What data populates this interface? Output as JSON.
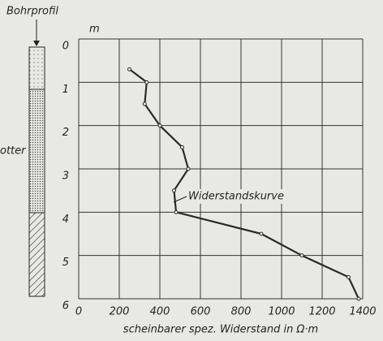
{
  "profile": {
    "title": "Bohrprofil",
    "label": "otter"
  },
  "chart_data": {
    "type": "line",
    "y_unit": "m",
    "xlabel": "scheinbarer spez. Widerstand in Ω·m",
    "annotation": "Widerstandskurve",
    "x": [
      250,
      335,
      325,
      400,
      510,
      540,
      470,
      480,
      900,
      1100,
      1330,
      1380
    ],
    "values": [
      0.7,
      1.0,
      1.5,
      2.0,
      2.5,
      3.0,
      3.5,
      4.0,
      4.5,
      5.0,
      5.5,
      6.0
    ],
    "color": "#2a2a2a",
    "xlim": [
      0,
      1400
    ],
    "xticks": [
      0,
      200,
      400,
      600,
      800,
      1000,
      1200,
      1400
    ],
    "ylim": [
      6,
      0
    ],
    "yticks": [
      0,
      1,
      2,
      3,
      4,
      5,
      6
    ],
    "grid": true
  }
}
